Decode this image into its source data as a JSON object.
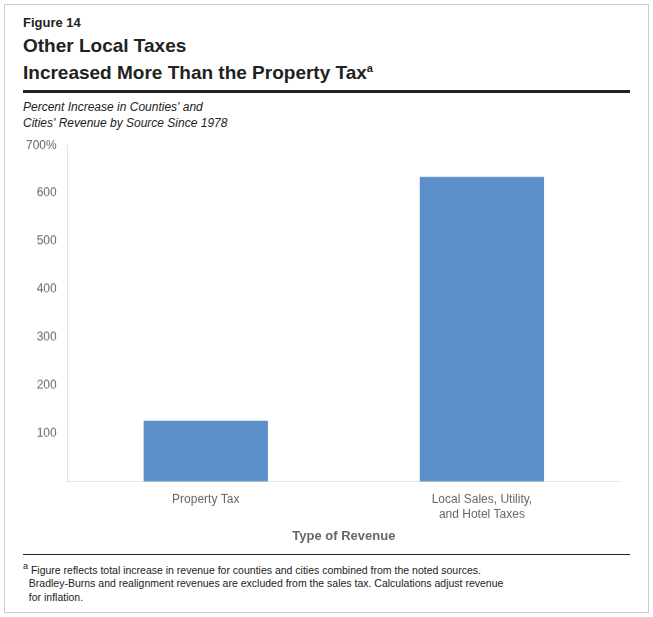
{
  "chart_data": {
    "type": "bar",
    "title": [
      "Other Local Taxes",
      "Increased More Than the Property Tax"
    ],
    "subtitle": [
      "Percent Increase in Counties' and",
      "Cities' Revenue by Source Since 1978"
    ],
    "annotations": [
      "Figure 14",
      "a",
      "Figure reflects total increase in revenue for counties and cities combined from the noted sources.",
      "Bradley-Burns and realignment revenues are excluded from the sales tax. Calculations adjust revenue",
      "for inflation."
    ],
    "xlabel": "Type of Revenue",
    "categories": [
      "Property Tax",
      "Local Sales, Utility,\nand Hotel Taxes"
    ],
    "values": [
      127,
      634
    ],
    "color": "#5b8fc9",
    "ylim": [
      0,
      700
    ],
    "yticks": [
      {
        "value": 0,
        "label": ""
      },
      100,
      200,
      300,
      400,
      500,
      600,
      {
        "value": 700,
        "label": "700%"
      }
    ],
    "grid": false
  }
}
